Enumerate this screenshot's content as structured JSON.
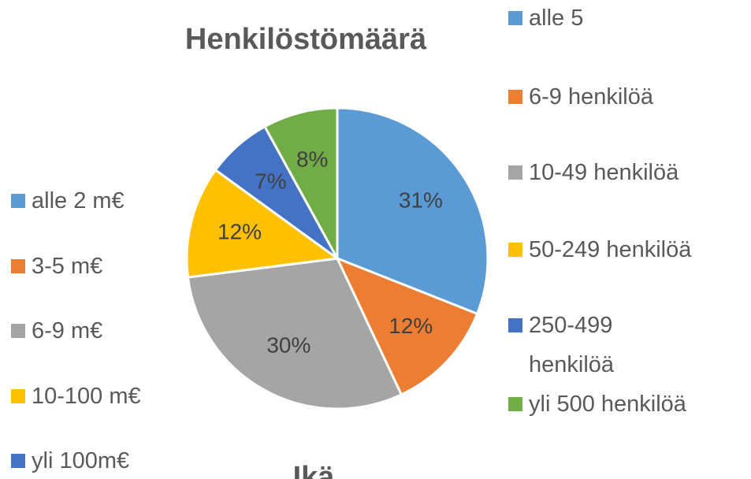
{
  "chart_data": {
    "type": "pie",
    "title": "Henkilöstömäärä",
    "categories": [
      "alle 5",
      "6-9 henkilöä",
      "10-49 henkilöä",
      "50-249 henkilöä",
      "250-499 henkilöä",
      "yli 500 henkilöä"
    ],
    "values": [
      31,
      12,
      30,
      12,
      7,
      8
    ],
    "value_labels": [
      "31%",
      "12%",
      "30%",
      "12%",
      "7%",
      "8%"
    ],
    "colors": [
      "#5b9bd5",
      "#ed7d31",
      "#a5a5a5",
      "#ffc000",
      "#4472c4",
      "#70ad47"
    ],
    "legend": "right"
  },
  "side_legend": {
    "items": [
      {
        "label": "alle 2 m€",
        "color": "#5b9bd5"
      },
      {
        "label": "3-5 m€",
        "color": "#ed7d31"
      },
      {
        "label": "6-9 m€",
        "color": "#a5a5a5"
      },
      {
        "label": "10-100 m€",
        "color": "#ffc000"
      },
      {
        "label": "yli 100m€",
        "color": "#4472c4"
      }
    ]
  },
  "next_title": "Ikä"
}
